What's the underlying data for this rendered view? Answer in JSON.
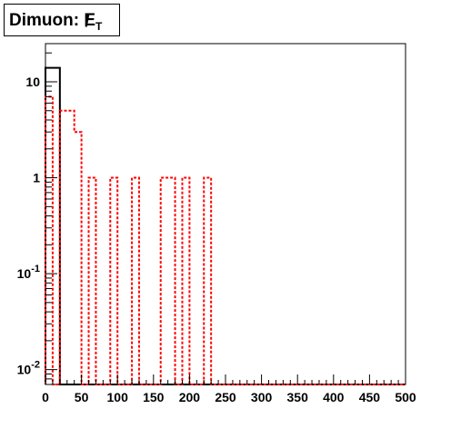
{
  "title": {
    "prefix": "Dimuon: ",
    "symbol": "E",
    "slash": "/",
    "subscript": "T"
  },
  "chart_data": {
    "type": "histogram",
    "title": "Dimuon: E/T",
    "xlabel": "",
    "ylabel": "",
    "xlim": [
      0,
      500
    ],
    "ylim": [
      0.007,
      25
    ],
    "yscale": "log",
    "grid": false,
    "legend": "none",
    "x_tick_labels": [
      "0",
      "50",
      "100",
      "150",
      "200",
      "250",
      "300",
      "350",
      "400",
      "450",
      "500"
    ],
    "y_tick_labels": [
      {
        "value": 0.01,
        "base": "10",
        "exp": "-2"
      },
      {
        "value": 0.1,
        "base": "10",
        "exp": "-1"
      },
      {
        "value": 1,
        "text": "1"
      },
      {
        "value": 10,
        "text": "10"
      }
    ],
    "bin_width": 10,
    "series": [
      {
        "style": "solid",
        "color": "#000000",
        "bins": [
          {
            "x0": 0,
            "x1": 20,
            "value": 14
          }
        ]
      },
      {
        "style": "dotted",
        "color": "#ff0000",
        "bins": [
          {
            "x0": 0,
            "x1": 10,
            "value": 7
          },
          {
            "x0": 20,
            "x1": 30,
            "value": 5
          },
          {
            "x0": 30,
            "x1": 40,
            "value": 5
          },
          {
            "x0": 40,
            "x1": 50,
            "value": 3
          },
          {
            "x0": 60,
            "x1": 70,
            "value": 1
          },
          {
            "x0": 90,
            "x1": 100,
            "value": 1
          },
          {
            "x0": 120,
            "x1": 130,
            "value": 1
          },
          {
            "x0": 160,
            "x1": 170,
            "value": 1
          },
          {
            "x0": 170,
            "x1": 180,
            "value": 1
          },
          {
            "x0": 190,
            "x1": 200,
            "value": 1
          },
          {
            "x0": 220,
            "x1": 230,
            "value": 1
          }
        ]
      }
    ]
  }
}
